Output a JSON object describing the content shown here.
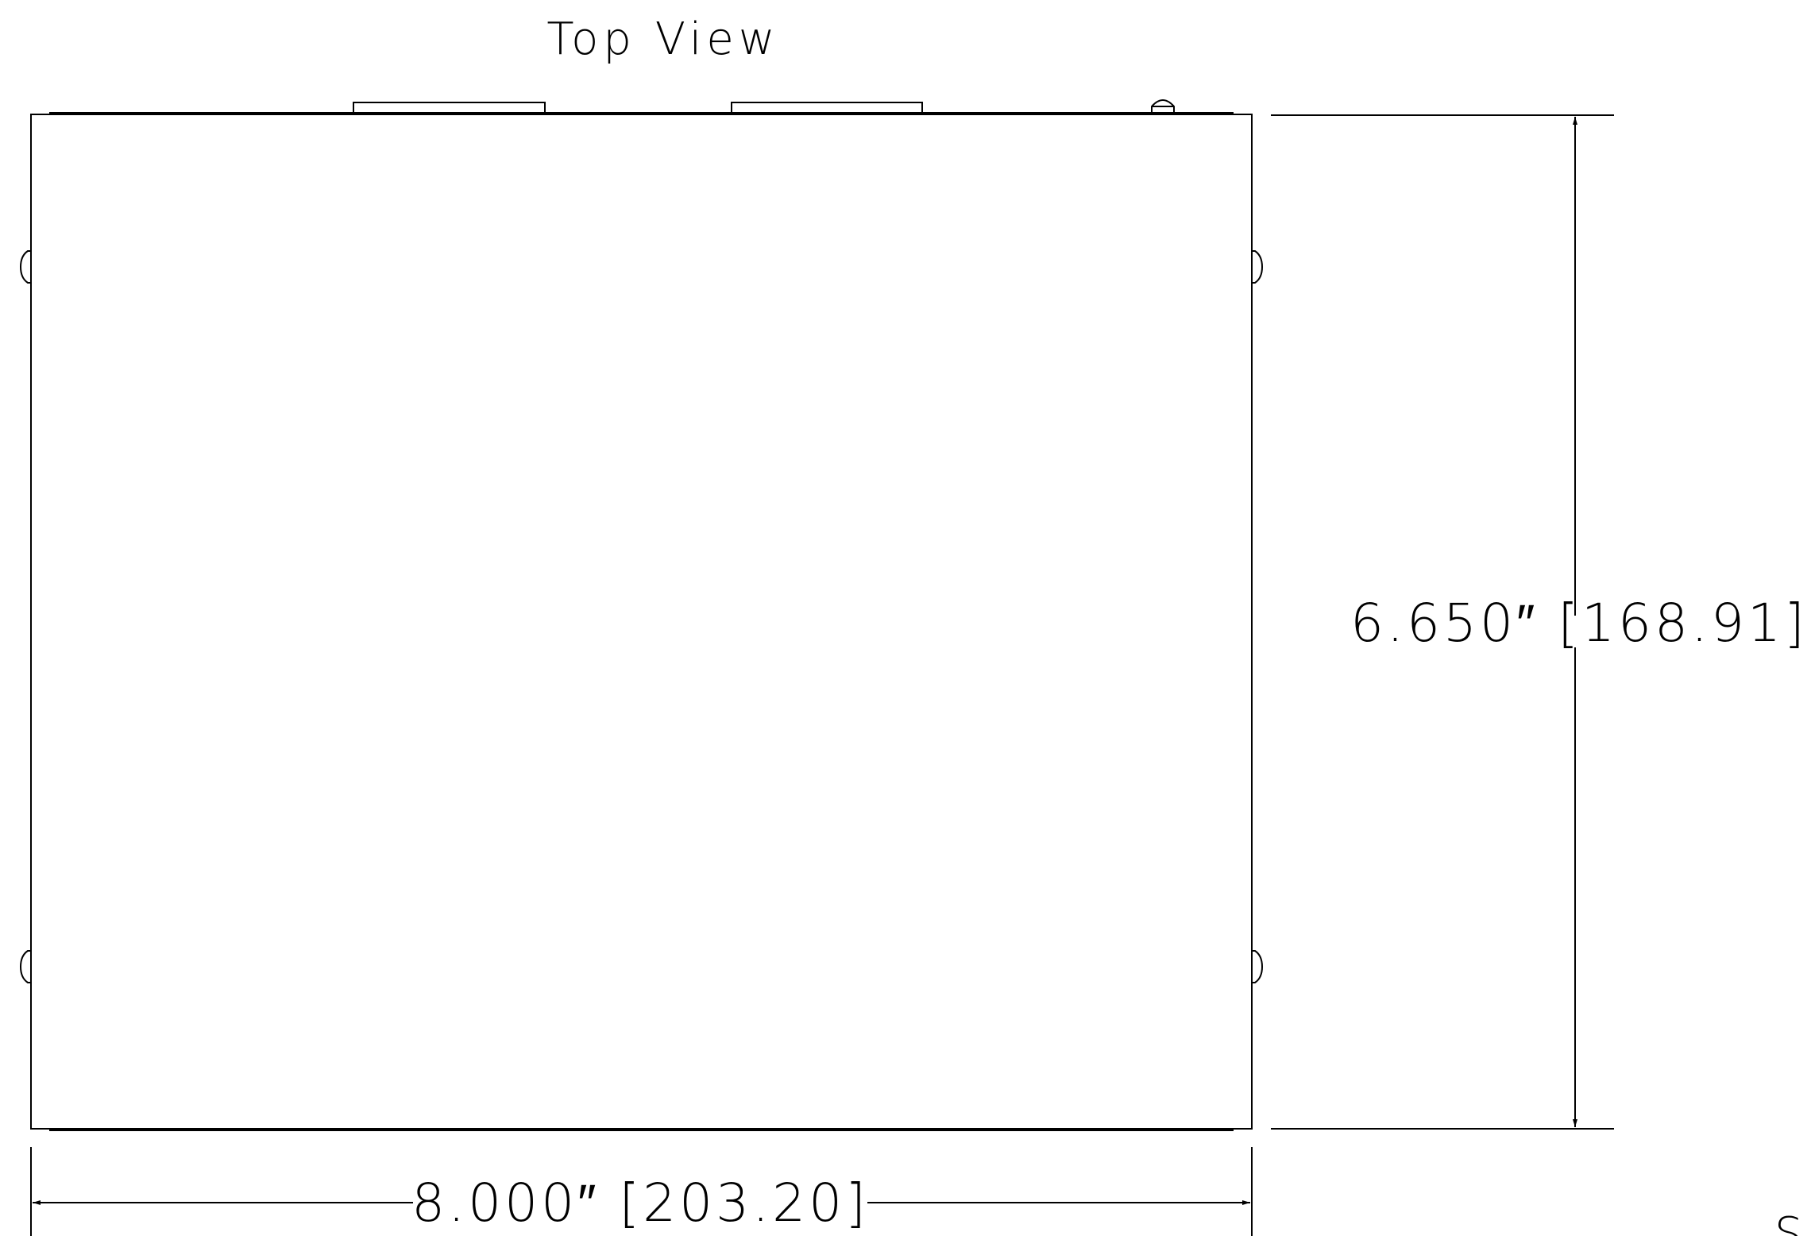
{
  "view_title": "Top View",
  "dims": {
    "height_label": "6.650″ [168.91]",
    "width_label": "8.000″ [203.20]"
  },
  "next_view_partial": "Si",
  "colors": {
    "line": "#000000",
    "background": "#ffffff"
  }
}
